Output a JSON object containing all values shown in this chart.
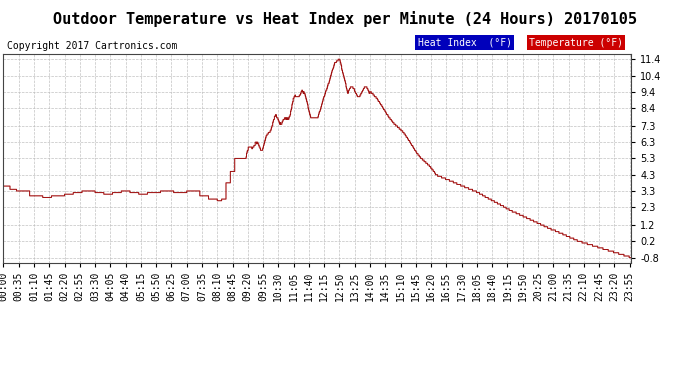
{
  "title": "Outdoor Temperature vs Heat Index per Minute (24 Hours) 20170105",
  "copyright": "Copyright 2017 Cartronics.com",
  "yticks": [
    11.4,
    10.4,
    9.4,
    8.4,
    7.3,
    6.3,
    5.3,
    4.3,
    3.3,
    2.3,
    1.2,
    0.2,
    -0.8
  ],
  "ymin": -0.8,
  "ymax": 11.4,
  "legend_heat_label": "Heat Index  (°F)",
  "legend_temp_label": "Temperature (°F)",
  "legend_heat_bg": "#0000bb",
  "legend_temp_bg": "#cc0000",
  "line_color": "#cc0000",
  "grid_color": "#bbbbbb",
  "bg_color": "#ffffff",
  "title_fontsize": 11,
  "tick_fontsize": 7,
  "copyright_fontsize": 7,
  "legend_fontsize": 7,
  "total_minutes": 1440,
  "xtick_step": 35
}
